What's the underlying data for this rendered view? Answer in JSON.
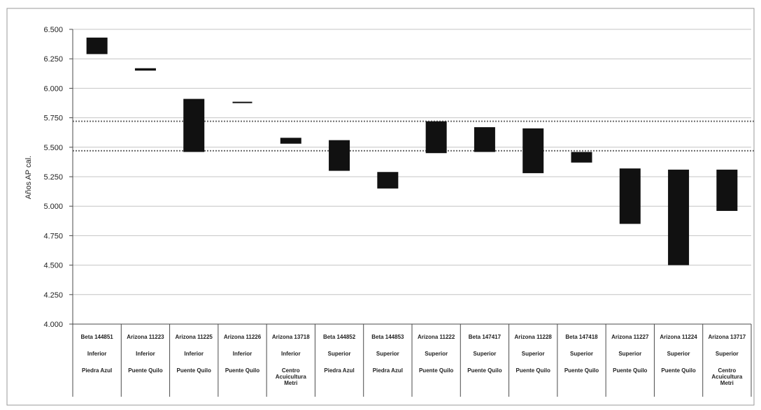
{
  "chart_data": {
    "type": "bar",
    "ylabel": "Años AP cal.",
    "ylim": [
      4000,
      6500
    ],
    "yticks": [
      "6.500",
      "6.250",
      "6.000",
      "5.750",
      "5.500",
      "5.250",
      "5.000",
      "4.750",
      "4.500",
      "4.250",
      "4.000"
    ],
    "ytick_values": [
      6500,
      6250,
      6000,
      5750,
      5500,
      5250,
      5000,
      4750,
      4500,
      4250,
      4000
    ],
    "reference_lines": [
      5720,
      5470
    ],
    "grid": true,
    "bar_color": "#111111",
    "categories": [
      {
        "sample": "Beta 144851",
        "level": "Inferior",
        "site": "Piedra Azul",
        "low": 6290,
        "high": 6430
      },
      {
        "sample": "Arizona 11223",
        "level": "Inferior",
        "site": "Puente Quilo",
        "low": 6150,
        "high": 6170
      },
      {
        "sample": "Arizona 11225",
        "level": "Inferior",
        "site": "Puente Quilo",
        "low": 5460,
        "high": 5910
      },
      {
        "sample": "Arizona 11226",
        "level": "Inferior",
        "site": "Puente Quilo",
        "low": 5870,
        "high": 5880
      },
      {
        "sample": "Arizona 13718",
        "level": "Inferior",
        "site": "Centro Acuicultura Metri",
        "low": 5530,
        "high": 5580
      },
      {
        "sample": "Beta 144852",
        "level": "Superior",
        "site": "Piedra Azul",
        "low": 5300,
        "high": 5560
      },
      {
        "sample": "Beta 144853",
        "level": "Superior",
        "site": "Piedra Azul",
        "low": 5150,
        "high": 5290
      },
      {
        "sample": "Arizona 11222",
        "level": "Superior",
        "site": "Puente Quilo",
        "low": 5450,
        "high": 5720
      },
      {
        "sample": "Beta 147417",
        "level": "Superior",
        "site": "Puente Quilo",
        "low": 5460,
        "high": 5670
      },
      {
        "sample": "Arizona 11228",
        "level": "Superior",
        "site": "Puente Quilo",
        "low": 5280,
        "high": 5660
      },
      {
        "sample": "Beta 147418",
        "level": "Superior",
        "site": "Puente Quilo",
        "low": 5370,
        "high": 5460
      },
      {
        "sample": "Arizona 11227",
        "level": "Superior",
        "site": "Puente Quilo",
        "low": 4850,
        "high": 5320
      },
      {
        "sample": "Arizona 11224",
        "level": "Superior",
        "site": "Puente Quilo",
        "low": 4500,
        "high": 5310
      },
      {
        "sample": "Arizona 13717",
        "level": "Superior",
        "site": "Centro Acuicultura Metri",
        "low": 4960,
        "high": 5310
      }
    ]
  }
}
